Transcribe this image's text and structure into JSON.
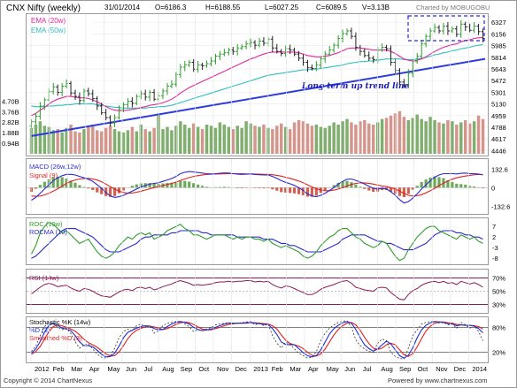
{
  "header": {
    "symbol": "CNX Nifty (weekly)",
    "date": "31/01/2014",
    "open": "O=6186.3",
    "high": "H=6188.55",
    "low": "L=6027.25",
    "close": "C=6089.5",
    "volume": "V=3.13B",
    "brand": "Charted by MOBUGOBU"
  },
  "footer": {
    "left": "Copyright © 2014 ChartNexus",
    "right": "Powered by www.chartnexus.com"
  },
  "annotation": "Long term up trend line",
  "colors": {
    "candle_up": "#2e9d2e",
    "candle_down": "#222222",
    "ema20": "#e0299e",
    "ema50": "#2fbfbf",
    "trendline": "#2b3bdc",
    "vol_up": "#7fae6f",
    "vol_down": "#d4968c",
    "macd": "#2a2ad0",
    "signal": "#e02020",
    "roc": "#2e9d2e",
    "rocma": "#2a2ad0",
    "rsi": "#8b1a5a",
    "stoch_k": "#1e2fd6",
    "stoch_d": "#e02020",
    "stoch_sd": "#e02020",
    "box": "#2a2ad0"
  },
  "chart_data": {
    "type": "candlestick-with-indicators",
    "x_labels": [
      "2012",
      "Feb",
      "Mar",
      "Apr",
      "May",
      "Jun",
      "Jul",
      "Aug",
      "Sep",
      "Oct",
      "Nov",
      "Dec",
      "2013",
      "Feb",
      "Mar",
      "Apr",
      "May",
      "Jun",
      "Jul",
      "Aug",
      "Sep",
      "Oct",
      "Nov",
      "Dec",
      "2014"
    ],
    "price": {
      "y_ticks": [
        4446,
        4617,
        4788,
        4959,
        5130,
        5301,
        5472,
        5643,
        5814,
        5985,
        6156,
        6327
      ],
      "ylim": [
        4400,
        6420
      ],
      "legend": [
        "EMA (20w)",
        "EMA (50w)"
      ],
      "close": [
        4870,
        4950,
        5100,
        5190,
        5310,
        5380,
        5300,
        5390,
        5430,
        5290,
        5240,
        5180,
        5320,
        5280,
        5210,
        5100,
        5000,
        4930,
        4850,
        4930,
        5050,
        5120,
        5170,
        5140,
        5240,
        5280,
        5230,
        5300,
        5200,
        5250,
        5320,
        5390,
        5420,
        5560,
        5670,
        5700,
        5740,
        5640,
        5700,
        5690,
        5720,
        5760,
        5830,
        5860,
        5880,
        5920,
        5900,
        5950,
        5970,
        6010,
        6030,
        5990,
        6050,
        6020,
        6080,
        5950,
        5900,
        5870,
        5940,
        5920,
        5860,
        5800,
        5740,
        5660,
        5650,
        5700,
        5790,
        5860,
        5920,
        5990,
        6090,
        6160,
        6200,
        6120,
        5960,
        5900,
        5840,
        5800,
        5780,
        5920,
        5960,
        5940,
        5740,
        5620,
        5450,
        5410,
        5580,
        5750,
        5830,
        6010,
        6120,
        6200,
        6250,
        6200,
        6270,
        6200,
        6230,
        6150,
        6300,
        6260,
        6210,
        6270,
        6190,
        6090
      ],
      "ema20": [
        4960,
        4990,
        5040,
        5080,
        5130,
        5170,
        5200,
        5220,
        5240,
        5240,
        5230,
        5220,
        5220,
        5210,
        5190,
        5160,
        5130,
        5090,
        5060,
        5040,
        5030,
        5030,
        5040,
        5050,
        5060,
        5080,
        5090,
        5110,
        5120,
        5130,
        5150,
        5170,
        5200,
        5240,
        5290,
        5330,
        5370,
        5400,
        5430,
        5460,
        5490,
        5520,
        5550,
        5580,
        5610,
        5640,
        5670,
        5700,
        5730,
        5760,
        5790,
        5810,
        5840,
        5860,
        5880,
        5890,
        5890,
        5890,
        5890,
        5890,
        5890,
        5880,
        5860,
        5840,
        5830,
        5820,
        5820,
        5830,
        5840,
        5860,
        5880,
        5910,
        5940,
        5950,
        5950,
        5950,
        5940,
        5930,
        5920,
        5920,
        5920,
        5920,
        5900,
        5870,
        5830,
        5790,
        5770,
        5760,
        5770,
        5790,
        5820,
        5860,
        5900,
        5930,
        5960,
        5980,
        6000,
        6010,
        6040,
        6060,
        6070,
        6090,
        6100,
        6100
      ],
      "ema50": [
        5100,
        5090,
        5090,
        5090,
        5100,
        5100,
        5110,
        5110,
        5120,
        5120,
        5130,
        5130,
        5130,
        5130,
        5130,
        5120,
        5110,
        5100,
        5090,
        5080,
        5080,
        5070,
        5070,
        5070,
        5070,
        5070,
        5070,
        5080,
        5080,
        5090,
        5090,
        5100,
        5110,
        5130,
        5150,
        5170,
        5190,
        5210,
        5230,
        5250,
        5270,
        5290,
        5310,
        5330,
        5350,
        5370,
        5390,
        5410,
        5430,
        5450,
        5470,
        5490,
        5510,
        5530,
        5550,
        5560,
        5570,
        5580,
        5590,
        5600,
        5610,
        5620,
        5630,
        5630,
        5640,
        5640,
        5650,
        5660,
        5670,
        5680,
        5690,
        5700,
        5720,
        5730,
        5740,
        5750,
        5750,
        5760,
        5760,
        5770,
        5780,
        5790,
        5790,
        5790,
        5790,
        5780,
        5780,
        5780,
        5790,
        5800,
        5810,
        5830,
        5850,
        5860,
        5880,
        5890,
        5910,
        5920,
        5940,
        5950,
        5960,
        5980,
        5990,
        6000
      ],
      "trendline": {
        "start": 4660,
        "end": 5790
      }
    },
    "volume": {
      "y_ticks": [
        "4.70B",
        "3.76B",
        "2.82B",
        "1.88B",
        "0.94B"
      ],
      "ylim": [
        0,
        5.2
      ],
      "values": [
        2.3,
        2.6,
        2.9,
        2.5,
        2.4,
        2.1,
        2.2,
        1.9,
        2.3,
        2.6,
        2.0,
        1.9,
        2.2,
        2.4,
        2.6,
        2.1,
        2.0,
        2.3,
        2.5,
        2.2,
        2.0,
        1.9,
        2.1,
        2.4,
        2.0,
        2.6,
        2.2,
        2.0,
        2.3,
        3.6,
        2.2,
        2.4,
        2.1,
        2.5,
        2.9,
        2.6,
        2.3,
        2.7,
        2.4,
        2.2,
        2.6,
        2.5,
        2.3,
        2.8,
        2.6,
        2.4,
        2.2,
        2.5,
        2.3,
        2.9,
        2.7,
        2.5,
        2.4,
        2.6,
        2.3,
        2.2,
        2.5,
        2.7,
        2.4,
        2.2,
        2.8,
        3.0,
        2.9,
        2.7,
        2.5,
        2.6,
        2.4,
        2.3,
        2.5,
        2.8,
        2.6,
        2.9,
        3.1,
        2.8,
        2.6,
        2.9,
        3.0,
        2.7,
        2.6,
        2.8,
        3.1,
        3.2,
        3.4,
        3.6,
        3.8,
        3.3,
        3.0,
        3.2,
        3.5,
        3.1,
        2.9,
        3.3,
        3.0,
        2.8,
        2.7,
        3.0,
        2.9,
        2.6,
        2.8,
        3.0,
        2.7,
        2.9,
        3.4,
        3.1
      ]
    },
    "macd": {
      "legend": [
        "MACD (26w,12w)",
        "Signal (9)"
      ],
      "y_ticks": [
        132.6,
        0,
        -132.6
      ],
      "ylim": [
        -175,
        185
      ],
      "macd": [
        -90,
        -70,
        -40,
        -10,
        20,
        50,
        70,
        85,
        95,
        95,
        90,
        80,
        70,
        60,
        45,
        20,
        -5,
        -35,
        -60,
        -70,
        -65,
        -55,
        -40,
        -25,
        -10,
        5,
        15,
        25,
        30,
        35,
        45,
        55,
        65,
        80,
        100,
        110,
        115,
        112,
        108,
        104,
        100,
        98,
        100,
        102,
        105,
        104,
        100,
        96,
        95,
        96,
        98,
        94,
        92,
        90,
        90,
        80,
        66,
        50,
        38,
        28,
        16,
        0,
        -20,
        -45,
        -60,
        -65,
        -55,
        -40,
        -20,
        0,
        25,
        45,
        60,
        62,
        52,
        40,
        25,
        10,
        -5,
        -10,
        -5,
        -10,
        -30,
        -55,
        -85,
        -110,
        -100,
        -75,
        -45,
        -10,
        20,
        50,
        75,
        90,
        100,
        100,
        100,
        98,
        102,
        104,
        100,
        100,
        97,
        90
      ],
      "signal": [
        -60,
        -62,
        -60,
        -52,
        -40,
        -25,
        -8,
        10,
        30,
        45,
        55,
        62,
        65,
        66,
        62,
        54,
        42,
        25,
        6,
        -10,
        -25,
        -35,
        -40,
        -38,
        -33,
        -25,
        -17,
        -8,
        0,
        8,
        15,
        22,
        30,
        40,
        52,
        62,
        72,
        80,
        86,
        91,
        94,
        96,
        97,
        98,
        99,
        100,
        100,
        100,
        99,
        98,
        98,
        97,
        96,
        95,
        94,
        92,
        88,
        82,
        74,
        66,
        57,
        47,
        35,
        20,
        5,
        -8,
        -17,
        -22,
        -22,
        -18,
        -10,
        0,
        12,
        23,
        30,
        34,
        34,
        31,
        25,
        18,
        12,
        7,
        0,
        -10,
        -25,
        -42,
        -55,
        -60,
        -58,
        -50,
        -38,
        -22,
        -5,
        15,
        32,
        48,
        60,
        70,
        77,
        83,
        88,
        92,
        94,
        94
      ],
      "histogram": [
        -30,
        -8,
        20,
        42,
        60,
        75,
        78,
        75,
        65,
        50,
        35,
        18,
        5,
        -6,
        -17,
        -34,
        -47,
        -60,
        -66,
        -60,
        -40,
        -20,
        0,
        13,
        23,
        30,
        32,
        33,
        30,
        27,
        30,
        33,
        35,
        40,
        48,
        48,
        43,
        32,
        22,
        13,
        6,
        2,
        3,
        4,
        6,
        4,
        0,
        -4,
        -4,
        -2,
        0,
        -3,
        -4,
        -5,
        -4,
        -12,
        -22,
        -32,
        -36,
        -38,
        -41,
        -47,
        -55,
        -65,
        -65,
        -57,
        -38,
        -18,
        2,
        18,
        35,
        45,
        48,
        39,
        22,
        6,
        -9,
        -21,
        -30,
        -28,
        -17,
        -17,
        -30,
        -45,
        -60,
        -68,
        -45,
        -15,
        13,
        40,
        58,
        72,
        80,
        75,
        68,
        52,
        40,
        28,
        25,
        21,
        12,
        8,
        3,
        -4
      ]
    },
    "roc": {
      "legend": [
        "ROC (10w)",
        "ROCMA (10)"
      ],
      "y_ticks": [
        7,
        2,
        -3,
        -8
      ],
      "ylim": [
        -10,
        10
      ],
      "roc": [
        -6,
        -2,
        4,
        7,
        9,
        8,
        6,
        4,
        5,
        3,
        1,
        -1,
        0,
        1,
        -2,
        -5,
        -7,
        -8,
        -7,
        -5,
        -2,
        0,
        2,
        1,
        3,
        4,
        3,
        4,
        1,
        2,
        3,
        5,
        6,
        7,
        8,
        6,
        5,
        3,
        3,
        2,
        1,
        2,
        3,
        3,
        3,
        2,
        1,
        2,
        1,
        2,
        2,
        1,
        1,
        0,
        1,
        -1,
        -2,
        -3,
        -2,
        -3,
        -4,
        -5,
        -7,
        -8,
        -7,
        -5,
        -2,
        0,
        2,
        3,
        5,
        6,
        6,
        4,
        2,
        1,
        -1,
        -2,
        -3,
        -2,
        0,
        -1,
        -4,
        -7,
        -9,
        -8,
        -4,
        -1,
        2,
        4,
        6,
        7,
        7,
        5,
        4,
        3,
        2,
        1,
        3,
        2,
        1,
        2,
        0,
        -1
      ],
      "rocma": [
        -8,
        -7,
        -5,
        -3,
        -1,
        1,
        3,
        5,
        6,
        6,
        6,
        5,
        4,
        3,
        2,
        0,
        -2,
        -4,
        -5,
        -5,
        -5,
        -4,
        -3,
        -2,
        -1,
        1,
        2,
        2,
        3,
        3,
        3,
        3,
        4,
        4,
        5,
        5,
        5,
        5,
        5,
        4,
        4,
        3,
        3,
        3,
        3,
        3,
        3,
        2,
        2,
        2,
        2,
        2,
        2,
        1,
        1,
        1,
        0,
        -1,
        -1,
        -2,
        -2,
        -3,
        -4,
        -5,
        -5,
        -5,
        -5,
        -4,
        -3,
        -2,
        -1,
        1,
        2,
        3,
        3,
        3,
        3,
        2,
        1,
        0,
        0,
        -1,
        -1,
        -2,
        -3,
        -4,
        -4,
        -4,
        -3,
        -2,
        -1,
        1,
        3,
        4,
        5,
        5,
        5,
        4,
        4,
        3,
        3,
        2,
        2,
        1
      ]
    },
    "rsi": {
      "legend": "RSI (14w)",
      "y_ticks": [
        "70%",
        "50%",
        "30%"
      ],
      "ylim": [
        20,
        80
      ],
      "values": [
        46,
        51,
        56,
        60,
        62,
        60,
        57,
        58,
        59,
        55,
        52,
        50,
        54,
        53,
        50,
        46,
        43,
        42,
        41,
        45,
        49,
        52,
        53,
        51,
        55,
        56,
        54,
        56,
        52,
        54,
        57,
        59,
        61,
        64,
        66,
        64,
        62,
        59,
        60,
        59,
        60,
        61,
        63,
        64,
        64,
        65,
        64,
        65,
        65,
        66,
        66,
        64,
        65,
        64,
        65,
        60,
        57,
        55,
        58,
        57,
        54,
        51,
        48,
        45,
        45,
        48,
        53,
        56,
        58,
        60,
        63,
        65,
        66,
        62,
        56,
        54,
        52,
        51,
        50,
        55,
        56,
        55,
        48,
        43,
        38,
        37,
        45,
        51,
        54,
        59,
        62,
        64,
        65,
        63,
        65,
        62,
        63,
        60,
        65,
        63,
        61,
        63,
        60,
        56
      ]
    },
    "stochastic": {
      "legend": [
        "Stochastic %K (14w)",
        "%D (3)",
        "Smoothed %D (3)"
      ],
      "y_ticks": [
        "80%",
        "20%"
      ],
      "ylim": [
        0,
        100
      ],
      "k": [
        22,
        35,
        60,
        82,
        92,
        88,
        80,
        74,
        78,
        65,
        45,
        30,
        38,
        40,
        28,
        15,
        8,
        6,
        12,
        30,
        55,
        70,
        76,
        72,
        84,
        88,
        80,
        85,
        66,
        72,
        84,
        90,
        92,
        94,
        95,
        88,
        82,
        70,
        74,
        72,
        76,
        80,
        86,
        88,
        90,
        92,
        88,
        90,
        91,
        93,
        94,
        86,
        90,
        84,
        88,
        60,
        42,
        30,
        44,
        40,
        28,
        18,
        12,
        6,
        8,
        22,
        48,
        66,
        78,
        86,
        92,
        95,
        96,
        80,
        50,
        36,
        28,
        22,
        20,
        42,
        52,
        48,
        20,
        10,
        5,
        4,
        30,
        60,
        74,
        88,
        92,
        94,
        95,
        90,
        92,
        86,
        88,
        78,
        92,
        86,
        78,
        84,
        70,
        48
      ],
      "d": [
        18,
        28,
        46,
        68,
        85,
        90,
        85,
        78,
        76,
        72,
        60,
        45,
        36,
        36,
        33,
        25,
        15,
        9,
        10,
        18,
        35,
        55,
        68,
        73,
        78,
        82,
        84,
        83,
        77,
        74,
        75,
        82,
        88,
        92,
        94,
        92,
        88,
        80,
        75,
        72,
        74,
        76,
        80,
        84,
        88,
        90,
        90,
        90,
        90,
        91,
        92,
        90,
        89,
        87,
        87,
        77,
        63,
        45,
        39,
        38,
        38,
        29,
        19,
        12,
        9,
        12,
        26,
        45,
        64,
        77,
        85,
        91,
        94,
        90,
        75,
        55,
        38,
        29,
        23,
        28,
        38,
        47,
        40,
        26,
        12,
        6,
        13,
        31,
        55,
        74,
        85,
        91,
        94,
        93,
        92,
        89,
        88,
        84,
        86,
        85,
        85,
        83,
        77,
        67
      ],
      "smoothed_d": [
        15,
        22,
        34,
        52,
        70,
        82,
        86,
        84,
        80,
        76,
        71,
        62,
        51,
        43,
        38,
        32,
        24,
        16,
        11,
        12,
        21,
        36,
        53,
        65,
        73,
        78,
        81,
        83,
        81,
        78,
        75,
        77,
        82,
        87,
        91,
        93,
        91,
        87,
        81,
        76,
        74,
        74,
        77,
        80,
        84,
        87,
        89,
        90,
        90,
        90,
        91,
        91,
        90,
        89,
        88,
        84,
        76,
        62,
        49,
        41,
        38,
        35,
        29,
        20,
        13,
        11,
        16,
        28,
        45,
        62,
        75,
        84,
        90,
        92,
        86,
        73,
        56,
        41,
        30,
        27,
        30,
        38,
        42,
        38,
        26,
        14,
        10,
        17,
        33,
        53,
        71,
        83,
        90,
        93,
        93,
        91,
        90,
        87,
        86,
        85,
        85,
        84,
        82,
        76
      ]
    }
  }
}
